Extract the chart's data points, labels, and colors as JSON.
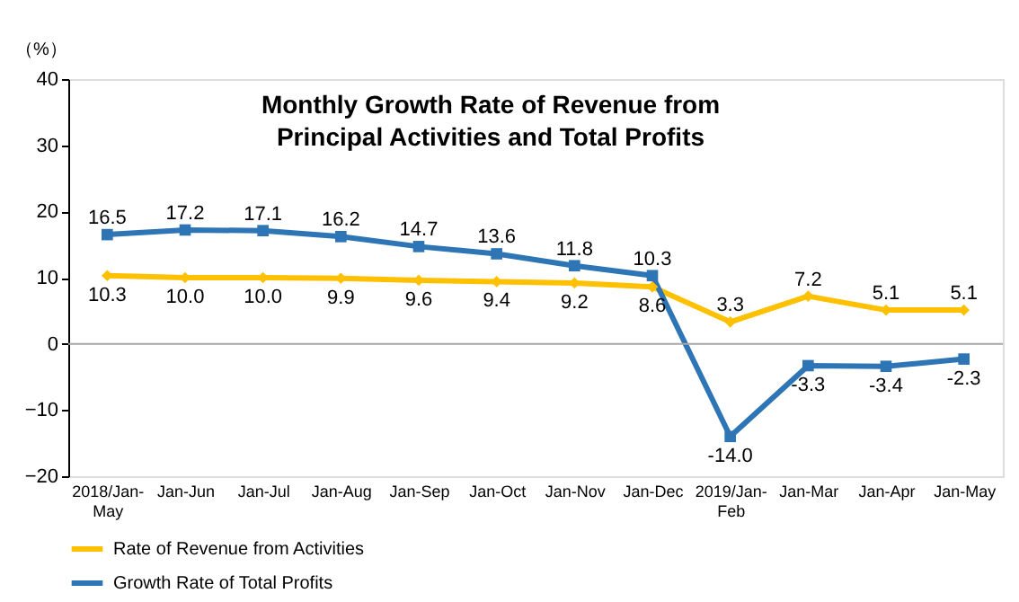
{
  "chart_data": {
    "type": "line",
    "title": "Monthly Growth Rate of Revenue from\nPrincipal Activities and Total Profits",
    "ylabel": "（%）",
    "categories": [
      "2018/Jan-May",
      "Jan-Jun",
      "Jan-Jul",
      "Jan-Aug",
      "Jan-Sep",
      "Jan-Oct",
      "Jan-Nov",
      "Jan-Dec",
      "2019/Jan-Feb",
      "Jan-Mar",
      "Jan-Apr",
      "Jan-May"
    ],
    "series": [
      {
        "name": "Rate of Revenue from Activities",
        "color": "#ffc000",
        "marker": "diamond",
        "values": [
          10.3,
          10.0,
          10.0,
          9.9,
          9.6,
          9.4,
          9.2,
          8.6,
          3.3,
          7.2,
          5.1,
          5.1
        ],
        "value_labels": [
          "10.3",
          "10.0",
          "10.0",
          "9.9",
          "9.6",
          "9.4",
          "9.2",
          "8.6",
          "3.3",
          "7.2",
          "5.1",
          "5.1"
        ]
      },
      {
        "name": "Growth Rate of Total Profits",
        "color": "#2e75b6",
        "marker": "square",
        "values": [
          16.5,
          17.2,
          17.1,
          16.2,
          14.7,
          13.6,
          11.8,
          10.3,
          -14.0,
          -3.3,
          -3.4,
          -2.3
        ],
        "value_labels": [
          "16.5",
          "17.2",
          "17.1",
          "16.2",
          "14.7",
          "13.6",
          "11.8",
          "10.3",
          "-14.0",
          "-3.3",
          "-3.4",
          "-2.3"
        ]
      }
    ],
    "ylim": [
      -20,
      40
    ],
    "yticks": [
      -20,
      -10,
      0,
      10,
      20,
      30,
      40
    ],
    "ref_lines": [
      {
        "axis": "y",
        "value": 0,
        "color": "#a6a6a6"
      }
    ],
    "grid": false,
    "legend": "bottom",
    "line_style": "solid"
  }
}
